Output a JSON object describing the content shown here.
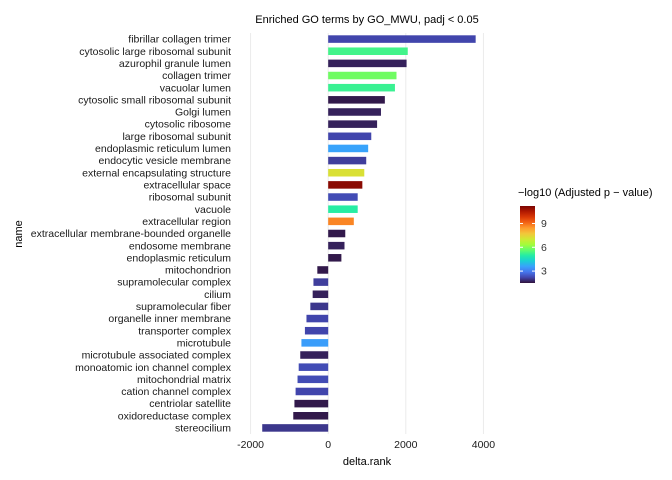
{
  "chart_data": {
    "type": "bar",
    "orientation": "horizontal",
    "title": "Enriched GO terms by GO_MWU, padj < 0.05",
    "xlabel": "delta.rank",
    "ylabel": "name",
    "xlim": [
      -2350,
      4350
    ],
    "xticks": [
      -2000,
      0,
      2000,
      4000
    ],
    "xtick_labels": [
      "-2000",
      "0",
      "2000",
      "4000"
    ],
    "grid": "vertical major lines",
    "legend": {
      "title": "−log10 (Adjusted p − value)",
      "position": "right",
      "type": "colorbar",
      "range": [
        1.5,
        11.2
      ],
      "ticks": [
        3,
        6,
        9
      ],
      "tick_labels": [
        "3",
        "6",
        "9"
      ]
    },
    "colorscale": [
      "#30123B",
      "#4145AB",
      "#4675ED",
      "#39A2FC",
      "#1BCFD4",
      "#24ECA6",
      "#61FC6C",
      "#A4FC3B",
      "#D1E834",
      "#F3C63A",
      "#FE9B2D",
      "#F36315",
      "#D93806",
      "#B11901",
      "#7A0403"
    ],
    "categories": [
      "fibrillar collagen trimer",
      "cytosolic large ribosomal subunit",
      "azurophil granule lumen",
      "collagen trimer",
      "vacuolar lumen",
      "cytosolic small ribosomal subunit",
      "Golgi lumen",
      "cytosolic ribosome",
      "large ribosomal subunit",
      "endoplasmic reticulum lumen",
      "endocytic vesicle membrane",
      "external encapsulating structure",
      "extracellular space",
      "ribosomal subunit",
      "vacuole",
      "extracellular region",
      "extracellular membrane-bounded organelle",
      "endosome membrane",
      "endoplasmic reticulum",
      "mitochondrion",
      "supramolecular complex",
      "cilium",
      "supramolecular fiber",
      "organelle inner membrane",
      "transporter complex",
      "microtubule",
      "microtubule associated complex",
      "monoatomic ion channel complex",
      "mitochondrial matrix",
      "cation channel complex",
      "centriolar satellite",
      "oxidoreductase complex",
      "stereocilium"
    ],
    "values": [
      3800,
      2050,
      2020,
      1760,
      1720,
      1460,
      1360,
      1260,
      1110,
      1030,
      980,
      930,
      880,
      760,
      760,
      660,
      440,
      420,
      340,
      -280,
      -380,
      -400,
      -460,
      -560,
      -600,
      -690,
      -720,
      -760,
      -790,
      -840,
      -870,
      -900,
      -1700
    ],
    "neglog10_padj": [
      2.2,
      5.3,
      1.7,
      5.8,
      5.2,
      1.6,
      1.7,
      1.7,
      2.2,
      3.6,
      2.1,
      7.2,
      11.0,
      2.3,
      5.0,
      8.7,
      1.6,
      1.7,
      1.6,
      1.6,
      2.1,
      1.7,
      2.0,
      2.2,
      2.2,
      3.5,
      1.7,
      2.3,
      2.3,
      2.2,
      1.6,
      1.6,
      2.0
    ]
  }
}
